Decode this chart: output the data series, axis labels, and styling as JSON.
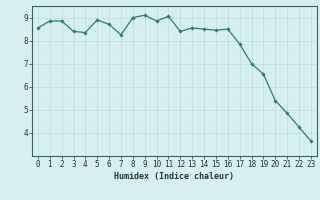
{
  "x": [
    0,
    1,
    2,
    3,
    4,
    5,
    6,
    7,
    8,
    9,
    10,
    11,
    12,
    13,
    14,
    15,
    16,
    17,
    18,
    19,
    20,
    21,
    22,
    23
  ],
  "y": [
    8.55,
    8.85,
    8.85,
    8.4,
    8.35,
    8.9,
    8.7,
    8.25,
    9.0,
    9.1,
    8.85,
    9.05,
    8.4,
    8.55,
    8.5,
    8.45,
    8.5,
    7.85,
    7.0,
    6.55,
    5.4,
    4.85,
    4.25,
    3.65
  ],
  "line_color": "#2e7d6e",
  "marker": "D",
  "marker_size": 1.8,
  "bg_color": "#d6f0f0",
  "grid_color_major": "#c0d8d8",
  "grid_color_minor": "#d0e8e8",
  "xlabel": "Humidex (Indice chaleur)",
  "xlabel_fontsize": 6.0,
  "xlim": [
    -0.5,
    23.5
  ],
  "ylim": [
    3.0,
    9.5
  ],
  "yticks": [
    4,
    5,
    6,
    7,
    8,
    9
  ],
  "xticks": [
    0,
    1,
    2,
    3,
    4,
    5,
    6,
    7,
    8,
    9,
    10,
    11,
    12,
    13,
    14,
    15,
    16,
    17,
    18,
    19,
    20,
    21,
    22,
    23
  ],
  "tick_fontsize": 5.5,
  "line_width": 0.9
}
